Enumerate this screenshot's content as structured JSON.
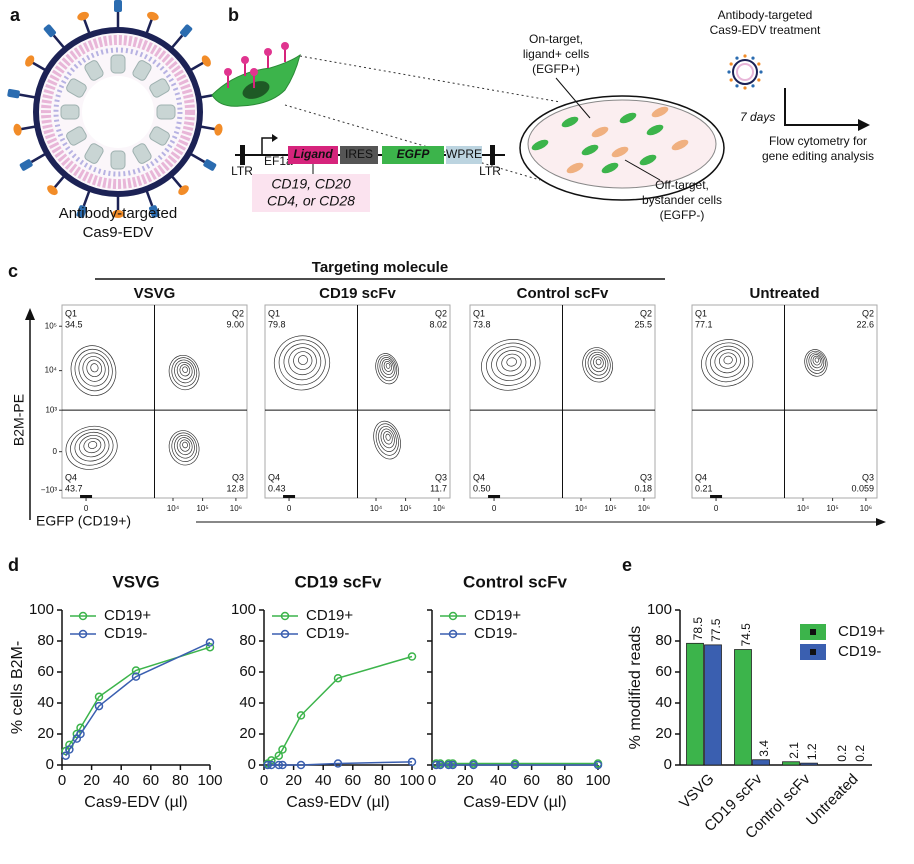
{
  "figure": {
    "a": {
      "label": "a",
      "caption": [
        "Antibody-targeted",
        "Cas9-EDV"
      ]
    },
    "b": {
      "label": "b",
      "elements": {
        "ltr_left": "LTR",
        "promoter": "EF1a",
        "ligand": "Ligand",
        "ires": "IRES",
        "egfp": "EGFP",
        "wpre": "WPRE",
        "ltr_right": "LTR"
      },
      "ligand_options": [
        "CD19, CD20",
        "CD4, or CD28"
      ],
      "on_target": [
        "On-target,",
        "ligand+ cells",
        "(EGFP+)"
      ],
      "off_target": [
        "Off-target,",
        "bystander cells",
        "(EGFP-)"
      ],
      "treatment": [
        "Antibody-targeted",
        "Cas9-EDV treatment"
      ],
      "duration": "7 days",
      "readout": [
        "Flow cytometry for",
        "gene editing analysis"
      ]
    },
    "c": {
      "label": "c",
      "header": "Targeting molecule",
      "y_label": "B2M-PE",
      "x_label": "EGFP (CD19+)",
      "y_ticks": [
        "10⁵",
        "10⁴",
        "10³",
        "0",
        "−10³"
      ],
      "x_ticks": [
        "0",
        "10⁴",
        "10⁵",
        "10⁶"
      ],
      "plots": [
        {
          "title": "VSVG",
          "quadrants": [
            [
              "Q1",
              "34.5"
            ],
            [
              "Q2",
              "9.00"
            ],
            [
              "Q3",
              "12.8"
            ],
            [
              "Q4",
              "43.7"
            ]
          ]
        },
        {
          "title": "CD19 scFv",
          "quadrants": [
            [
              "Q1",
              "79.8"
            ],
            [
              "Q2",
              "8.02"
            ],
            [
              "Q3",
              "11.7"
            ],
            [
              "Q4",
              "0.43"
            ]
          ]
        },
        {
          "title": "Control scFv",
          "quadrants": [
            [
              "Q1",
              "73.8"
            ],
            [
              "Q2",
              "25.5"
            ],
            [
              "Q3",
              "0.18"
            ],
            [
              "Q4",
              "0.50"
            ]
          ]
        },
        {
          "title": "Untreated",
          "quadrants": [
            [
              "Q1",
              "77.1"
            ],
            [
              "Q2",
              "22.6"
            ],
            [
              "Q3",
              "0.059"
            ],
            [
              "Q4",
              "0.21"
            ]
          ]
        }
      ]
    },
    "d": {
      "label": "d"
    },
    "e": {
      "label": "e"
    }
  },
  "chart_data": [
    {
      "type": "line",
      "title": "VSVG",
      "x_label": "Cas9-EDV (µl)",
      "y_label": "% cells B2M-",
      "x": [
        2.5,
        5,
        10,
        12.5,
        25,
        50,
        100
      ],
      "series": [
        {
          "name": "CD19+",
          "color": "#3cb44b",
          "values": [
            9,
            13,
            20,
            24,
            44,
            61,
            76
          ]
        },
        {
          "name": "CD19-",
          "color": "#3a5fb0",
          "values": [
            6,
            10,
            17,
            20,
            38,
            57,
            79
          ]
        }
      ],
      "xlim": [
        0,
        100
      ],
      "xticks": [
        0,
        20,
        40,
        60,
        80,
        100
      ],
      "ylim": [
        0,
        100
      ],
      "yticks": [
        0,
        20,
        40,
        60,
        80,
        100
      ]
    },
    {
      "type": "line",
      "title": "CD19 scFv",
      "x_label": "Cas9-EDV (µl)",
      "x": [
        2.5,
        5,
        10,
        12.5,
        25,
        50,
        100
      ],
      "series": [
        {
          "name": "CD19+",
          "color": "#3cb44b",
          "values": [
            1,
            3,
            6,
            10,
            32,
            56,
            70
          ]
        },
        {
          "name": "CD19-",
          "color": "#3a5fb0",
          "values": [
            0,
            0,
            0,
            0,
            0,
            1,
            2
          ]
        }
      ],
      "xlim": [
        0,
        100
      ],
      "xticks": [
        0,
        20,
        40,
        60,
        80,
        100
      ],
      "ylim": [
        0,
        100
      ],
      "yticks": [
        0,
        20,
        40,
        60,
        80,
        100
      ]
    },
    {
      "type": "line",
      "title": "Control scFv",
      "x_label": "Cas9-EDV (µl)",
      "x": [
        2.5,
        5,
        10,
        12.5,
        25,
        50,
        100
      ],
      "series": [
        {
          "name": "CD19+",
          "color": "#3cb44b",
          "values": [
            1,
            1,
            1,
            1,
            1,
            1,
            1
          ]
        },
        {
          "name": "CD19-",
          "color": "#3a5fb0",
          "values": [
            0,
            0,
            0,
            0,
            0,
            0,
            0
          ]
        }
      ],
      "xlim": [
        0,
        100
      ],
      "xticks": [
        0,
        20,
        40,
        60,
        80,
        100
      ],
      "ylim": [
        0,
        100
      ],
      "yticks": [
        0,
        20,
        40,
        60,
        80,
        100
      ],
      "show_ytick_labels": false
    },
    {
      "type": "bar",
      "y_label": "% modified reads",
      "categories": [
        "VSVG",
        "CD19 scFv",
        "Control scFv",
        "Untreated"
      ],
      "series": [
        {
          "name": "CD19+",
          "color": "#3cb44b",
          "values": [
            78.5,
            74.5,
            2.1,
            0.2
          ]
        },
        {
          "name": "CD19-",
          "color": "#3a5fb0",
          "values": [
            77.5,
            3.4,
            1.2,
            0.2
          ]
        }
      ],
      "ylim": [
        0,
        100
      ],
      "yticks": [
        0,
        20,
        40,
        60,
        80,
        100
      ]
    }
  ]
}
